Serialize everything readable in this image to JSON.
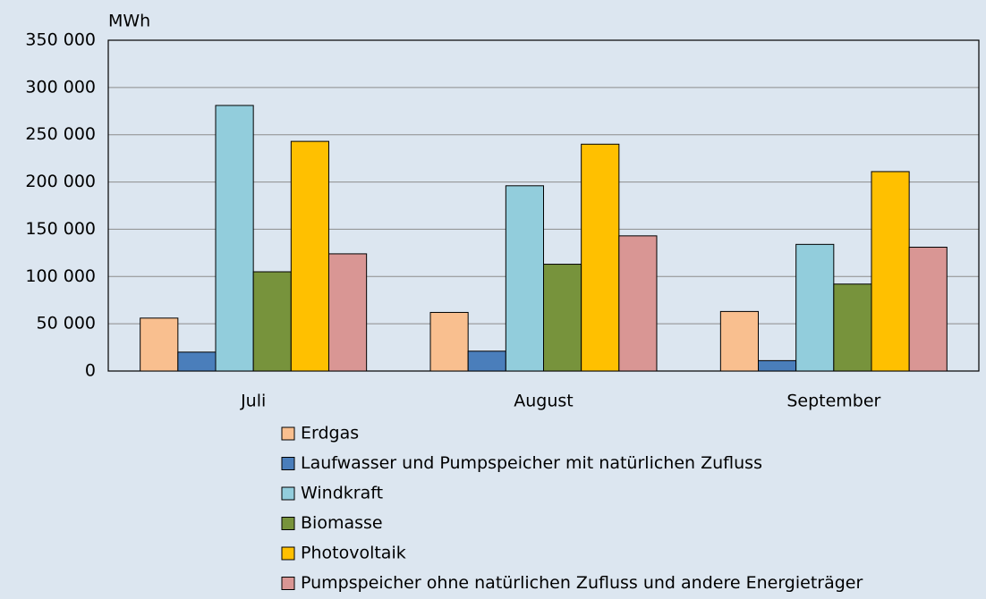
{
  "chart_data": {
    "type": "bar",
    "y_unit_label": "MWh",
    "categories": [
      "Juli",
      "August",
      "September"
    ],
    "series": [
      {
        "name": "Erdgas",
        "color": "#f9bf8f",
        "values": [
          56000,
          62000,
          63000
        ]
      },
      {
        "name": "Laufwasser und Pumpspeicher mit natürlichen Zufluss",
        "color": "#4a7ebb",
        "values": [
          20000,
          21000,
          11000
        ]
      },
      {
        "name": "Windkraft",
        "color": "#92cddc",
        "values": [
          281000,
          196000,
          134000
        ]
      },
      {
        "name": "Biomasse",
        "color": "#77933c",
        "values": [
          105000,
          113000,
          92000
        ]
      },
      {
        "name": "Photovoltaik",
        "color": "#ffc000",
        "values": [
          243000,
          240000,
          211000
        ]
      },
      {
        "name": "Pumpspeicher ohne natürlichen Zufluss und andere Energieträger",
        "color": "#d99694",
        "values": [
          124000,
          143000,
          131000
        ]
      }
    ],
    "ylim": [
      0,
      350000
    ],
    "yticks": [
      0,
      {
        "value": 50000,
        "label": "50 000"
      },
      {
        "value": 100000,
        "label": "100 000"
      },
      {
        "value": 150000,
        "label": "150 000"
      },
      {
        "value": 200000,
        "label": "200 000"
      },
      {
        "value": 250000,
        "label": "250 000"
      },
      {
        "value": 300000,
        "label": "300 000"
      },
      {
        "value": 350000,
        "label": "350 000"
      }
    ],
    "grid": true,
    "legend": "bottom"
  }
}
